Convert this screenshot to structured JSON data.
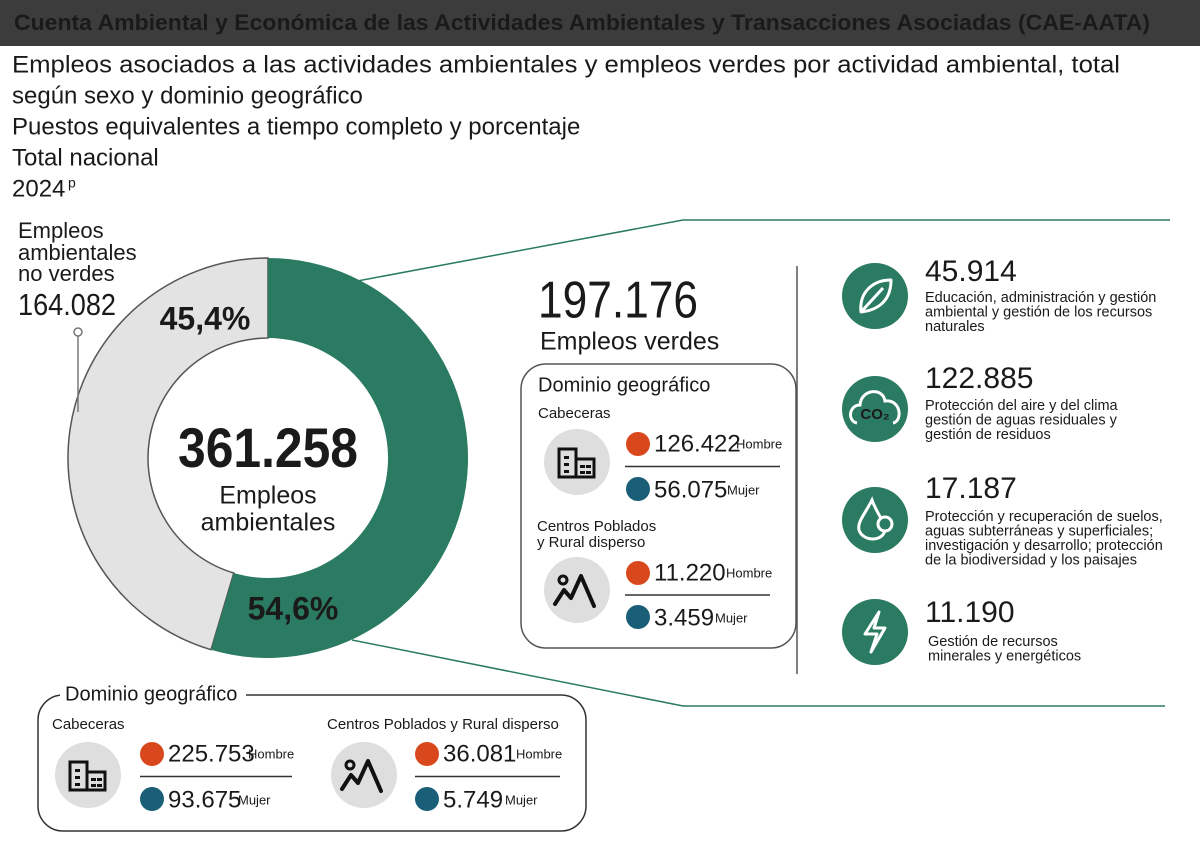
{
  "header": {
    "title": "Cuenta Ambiental y Económica de las Actividades Ambientales y Transacciones Asociadas (CAE-AATA)"
  },
  "subtitle": {
    "lines": [
      "Empleos asociados a las actividades ambientales y empleos verdes por actividad ambiental, total",
      "según sexo y dominio geográfico",
      "Puestos equivalentes a tiempo completo y porcentaje",
      "Total nacional"
    ],
    "year": "2024",
    "year_mark": "p"
  },
  "donut": {
    "values": [
      45.4,
      54.6
    ],
    "value_labels": [
      "45,4%",
      "54,6%"
    ],
    "colors": [
      "#e3e3e3",
      "#2b7a62"
    ],
    "total": "361.258",
    "total_label": [
      "Empleos",
      "ambientales"
    ]
  },
  "non_green": {
    "label": [
      "Empleos",
      "ambientales",
      "no verdes"
    ],
    "value": "164.082"
  },
  "green": {
    "value": "197.176",
    "label": "Empleos verdes",
    "domain": {
      "title": "Dominio geográfico",
      "areas": [
        {
          "name": [
            "Cabeceras"
          ],
          "men": "126.422",
          "men_label": "Hombre",
          "women": "56.075",
          "women_label": "Mujer"
        },
        {
          "name": [
            "Centros Poblados",
            "y Rural disperso"
          ],
          "men": "11.220",
          "men_label": "Hombre",
          "women": "3.459",
          "women_label": "Mujer"
        }
      ]
    }
  },
  "activities": [
    {
      "value": "45.914",
      "description": [
        "Educación, administración y gestión",
        "ambiental y gestión de los recursos",
        "naturales"
      ]
    },
    {
      "value": "122.885",
      "icon_label": "CO₂",
      "description": [
        "Protección del aire y del clima",
        "gestión de aguas residuales y",
        "gestión de residuos"
      ]
    },
    {
      "value": "17.187",
      "description": [
        "Protección y recuperación de suelos,",
        "aguas subterráneas  y superficiales;",
        "investigación y desarrollo; protección",
        "de la biodiversidad y los paisajes"
      ]
    },
    {
      "value": "11.190",
      "description": [
        "Gestión de recursos",
        "minerales y energéticos"
      ]
    }
  ],
  "total_domain": {
    "title": "Dominio geográfico",
    "areas": [
      {
        "name": [
          "Cabeceras"
        ],
        "men": "225.753",
        "men_label": "Hombre",
        "women": "93.675",
        "women_label": "Mujer"
      },
      {
        "name": [
          "Centros Poblados y Rural disperso"
        ],
        "men": "36.081",
        "men_label": "Hombre",
        "women": "5.749",
        "women_label": "Mujer"
      }
    ]
  }
}
